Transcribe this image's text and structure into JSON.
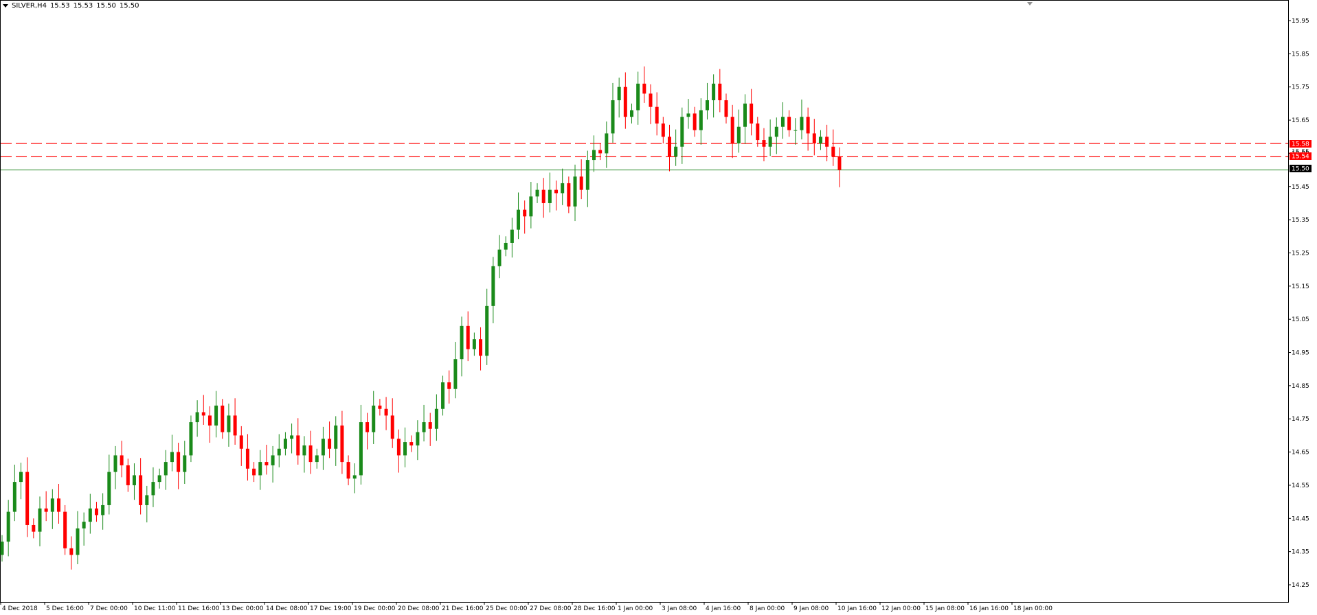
{
  "header": {
    "symbol": "SILVER,H4",
    "open": "15.53",
    "high": "15.53",
    "low": "15.50",
    "close": "15.50"
  },
  "price_tags": {
    "level1": "15.58",
    "level2": "15.54",
    "current": "15.50",
    "partial": "15.55"
  },
  "colors": {
    "bull": "#1a8a1a",
    "bear": "#ff0000",
    "level_line": "#ff0000",
    "price_line": "#2e8b2e",
    "axis": "#000000"
  },
  "chart_data": {
    "type": "candlestick",
    "instrument": "SILVER",
    "timeframe": "H4",
    "y_axis_ticks": [
      "15.95",
      "15.85",
      "15.75",
      "15.65",
      "15.55",
      "15.45",
      "15.35",
      "15.25",
      "15.15",
      "15.05",
      "14.95",
      "14.85",
      "14.75",
      "14.65",
      "14.55",
      "14.45",
      "14.35",
      "14.25"
    ],
    "ylim": [
      14.16,
      15.98
    ],
    "x_axis_ticks": [
      "4 Dec 2018",
      "5 Dec 16:00",
      "7 Dec 00:00",
      "10 Dec 11:00",
      "11 Dec 16:00",
      "13 Dec 00:00",
      "14 Dec 08:00",
      "17 Dec 19:00",
      "19 Dec 00:00",
      "20 Dec 08:00",
      "21 Dec 16:00",
      "25 Dec 00:00",
      "27 Dec 08:00",
      "28 Dec 16:00",
      "1 Jan 00:00",
      "3 Jan 08:00",
      "4 Jan 16:00",
      "8 Jan 00:00",
      "9 Jan 08:00",
      "10 Jan 16:00",
      "12 Jan 00:00",
      "15 Jan 08:00",
      "16 Jan 16:00",
      "18 Jan 00:00"
    ],
    "horizontal_levels": [
      15.58,
      15.54
    ],
    "current_price": 15.5,
    "closes": [
      14.38,
      14.47,
      14.56,
      14.59,
      14.43,
      14.41,
      14.48,
      14.47,
      14.51,
      14.47,
      14.36,
      14.34,
      14.42,
      14.44,
      14.48,
      14.46,
      14.49,
      14.59,
      14.64,
      14.61,
      14.55,
      14.58,
      14.49,
      14.52,
      14.56,
      14.58,
      14.62,
      14.65,
      14.59,
      14.64,
      14.74,
      14.77,
      14.76,
      14.73,
      14.79,
      14.71,
      14.76,
      14.7,
      14.66,
      14.6,
      14.58,
      14.62,
      14.61,
      14.64,
      14.66,
      14.69,
      14.7,
      14.64,
      14.67,
      14.62,
      14.64,
      14.69,
      14.66,
      14.73,
      14.62,
      14.57,
      14.58,
      14.74,
      14.71,
      14.79,
      14.78,
      14.76,
      14.69,
      14.64,
      14.68,
      14.67,
      14.71,
      14.74,
      14.72,
      14.78,
      14.86,
      14.84,
      14.93,
      15.03,
      14.96,
      14.99,
      14.94,
      15.09,
      15.21,
      15.26,
      15.28,
      15.32,
      15.38,
      15.36,
      15.42,
      15.44,
      15.4,
      15.44,
      15.43,
      15.46,
      15.39,
      15.48,
      15.44,
      15.53,
      15.56,
      15.55,
      15.61,
      15.71,
      15.75,
      15.66,
      15.68,
      15.76,
      15.73,
      15.69,
      15.64,
      15.6,
      15.54,
      15.57,
      15.66,
      15.67,
      15.62,
      15.68,
      15.71,
      15.76,
      15.71,
      15.66,
      15.58,
      15.63,
      15.7,
      15.64,
      15.59,
      15.57,
      15.6,
      15.63,
      15.66,
      15.62,
      15.62,
      15.66,
      15.61,
      15.58,
      15.6,
      15.57,
      15.54,
      15.5
    ]
  }
}
